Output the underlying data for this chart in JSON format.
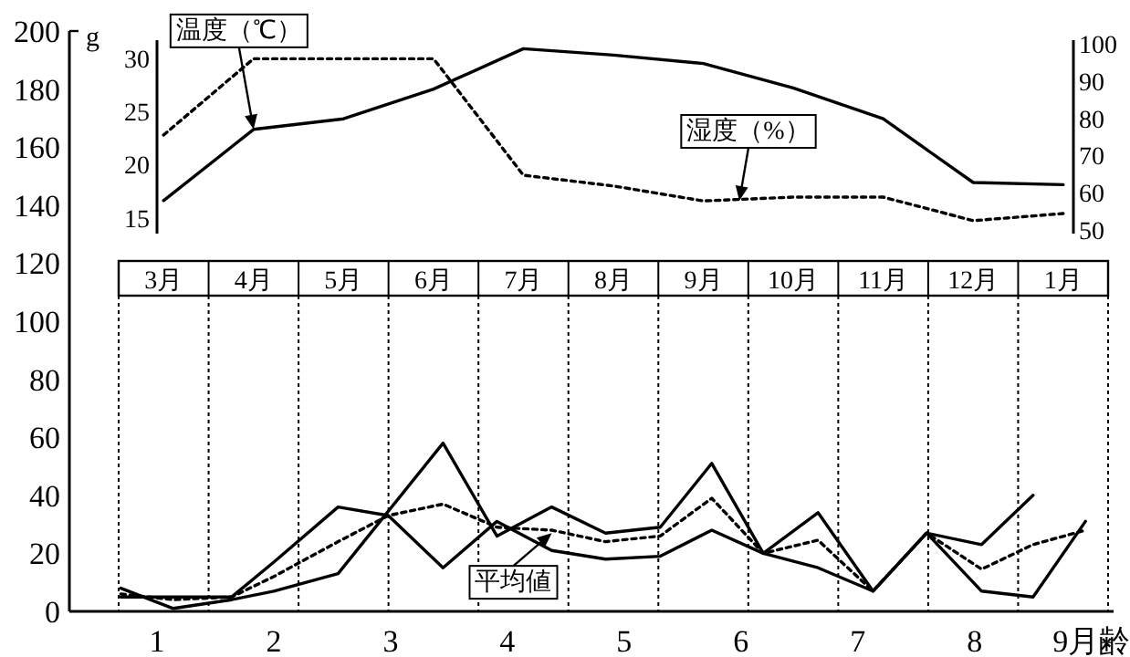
{
  "chart_data": [
    {
      "type": "line",
      "categories": [
        "3月",
        "4月",
        "5月",
        "6月",
        "7月",
        "8月",
        "9月",
        "10月",
        "11月",
        "12月",
        "1月"
      ],
      "series": [
        {
          "color": "#000000",
          "line_style": "solid",
          "values": [
            16.6,
            23.3,
            24.3,
            27.1,
            30.9,
            30.3,
            29.5,
            27.2,
            24.3,
            18.3,
            18.1
          ]
        },
        {
          "color": "#000000",
          "line_style": "dotted",
          "axis": "y2",
          "values": [
            75.5,
            96,
            96,
            96,
            64.7,
            61.8,
            57.8,
            58.8,
            58.8,
            52.5,
            54.4
          ]
        }
      ],
      "ylim": [
        13.5,
        31.7
      ],
      "yticks": [
        15,
        20,
        25,
        30
      ],
      "y2lim": [
        49,
        101
      ],
      "y2ticks": [
        50,
        60,
        70,
        80,
        90,
        100
      ],
      "grid": "x",
      "annotations": [
        {
          "text": "温度（℃）",
          "x": "4月",
          "y": 23.3
        },
        "湿度（%）"
      ]
    },
    {
      "type": "line",
      "ylabel": "g",
      "xlim": [
        0.25,
        9.19
      ],
      "xticks": [
        1,
        2,
        3,
        4,
        5,
        6,
        7,
        8,
        {
          "value": 9,
          "label": "9月齢"
        }
      ],
      "ylim": [
        0,
        200
      ],
      "yticks": [
        0,
        20,
        40,
        60,
        80,
        100,
        120,
        140,
        160,
        180,
        200
      ],
      "grid": false,
      "series": [
        {
          "color": "#000000",
          "line_style": "solid",
          "x": [
            0.69,
            1.14,
            1.64,
            2.0,
            2.55,
            3.45,
            3.91,
            4.38,
            4.84,
            5.31,
            5.75,
            6.19,
            6.66,
            7.13,
            7.59,
            8.06,
            8.5
          ],
          "values": [
            8,
            1,
            4,
            7,
            13,
            58,
            26,
            36,
            27,
            29,
            51,
            20,
            34,
            7,
            27,
            23,
            40
          ]
        },
        {
          "color": "#000000",
          "line_style": "solid",
          "x": [
            0.69,
            1.64,
            2.0,
            2.55,
            2.98,
            3.45,
            3.91,
            4.38,
            4.84,
            5.31,
            5.75,
            6.19,
            6.66,
            7.13,
            7.59,
            8.06,
            8.5,
            8.95
          ],
          "values": [
            5,
            5,
            17,
            36,
            33,
            15,
            31,
            21,
            18,
            19,
            28,
            20,
            15,
            7,
            27,
            7,
            5,
            31
          ]
        },
        {
          "color": "#000000",
          "line_style": "dotted",
          "x": [
            0.69,
            1.14,
            1.64,
            2.0,
            2.55,
            2.98,
            3.45,
            3.91,
            4.38,
            4.84,
            5.31,
            5.75,
            6.19,
            6.66,
            7.13,
            7.59,
            8.06,
            8.5,
            8.95
          ],
          "values": [
            6,
            4,
            5,
            12,
            24,
            33,
            37,
            29,
            28,
            24,
            26,
            39,
            20,
            24.5,
            7,
            27,
            14.5,
            23,
            28
          ]
        }
      ],
      "annotations": [
        {
          "text": "平均値",
          "x": 4.38,
          "y": 27
        }
      ]
    }
  ]
}
